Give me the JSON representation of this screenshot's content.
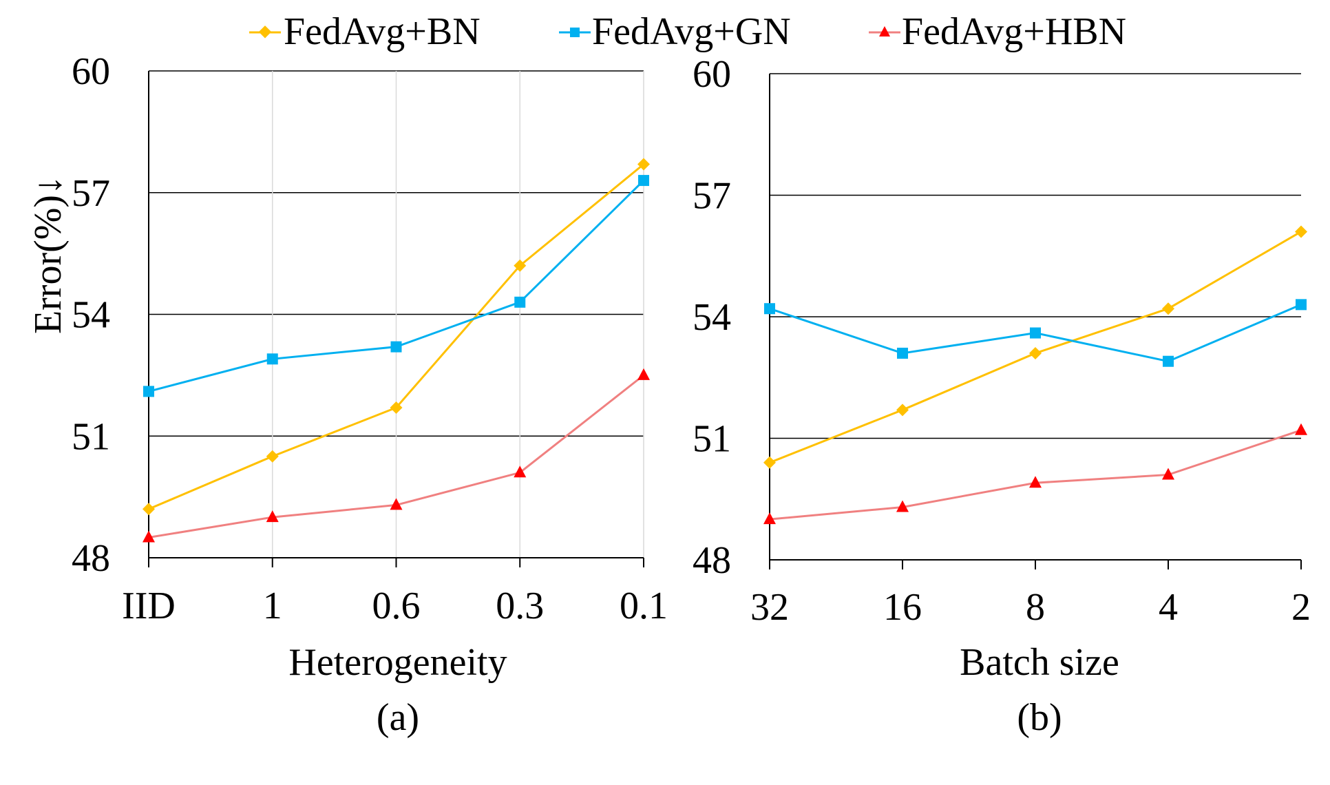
{
  "legend": [
    {
      "label": "FedAvg+BN",
      "color": "#FFC000",
      "marker": "diamond"
    },
    {
      "label": "FedAvg+GN",
      "color": "#00B0F0",
      "marker": "square"
    },
    {
      "label": "FedAvg+HBN",
      "color": "#F08080",
      "marker_color": "#FF0000",
      "marker": "triangle"
    }
  ],
  "y_axis_title": "Error(%)↓",
  "chart_data": [
    {
      "type": "line",
      "title": "",
      "panel_label": "(a)",
      "xlabel": "Heterogeneity",
      "ylabel": "Error(%)↓",
      "categories": [
        "IID",
        "1",
        "0.6",
        "0.3",
        "0.1"
      ],
      "ylim": [
        48,
        60
      ],
      "yticks": [
        48,
        51,
        54,
        57,
        60
      ],
      "grid": {
        "horizontal": true,
        "vertical": true
      },
      "series": [
        {
          "name": "FedAvg+BN",
          "values": [
            49.2,
            50.5,
            51.7,
            55.2,
            57.7
          ]
        },
        {
          "name": "FedAvg+GN",
          "values": [
            52.1,
            52.9,
            53.2,
            54.3,
            57.3
          ]
        },
        {
          "name": "FedAvg+HBN",
          "values": [
            48.5,
            49.0,
            49.3,
            50.1,
            52.5
          ]
        }
      ]
    },
    {
      "type": "line",
      "title": "",
      "panel_label": "(b)",
      "xlabel": "Batch size",
      "ylabel": "",
      "categories": [
        "32",
        "16",
        "8",
        "4",
        "2"
      ],
      "ylim": [
        48,
        60
      ],
      "yticks": [
        48,
        51,
        54,
        57,
        60
      ],
      "grid": {
        "horizontal": true,
        "vertical": false
      },
      "series": [
        {
          "name": "FedAvg+BN",
          "values": [
            50.4,
            51.7,
            53.1,
            54.2,
            56.1
          ]
        },
        {
          "name": "FedAvg+GN",
          "values": [
            54.2,
            53.1,
            53.6,
            52.9,
            54.3
          ]
        },
        {
          "name": "FedAvg+HBN",
          "values": [
            49.0,
            49.3,
            49.9,
            50.1,
            51.2
          ]
        }
      ]
    }
  ]
}
